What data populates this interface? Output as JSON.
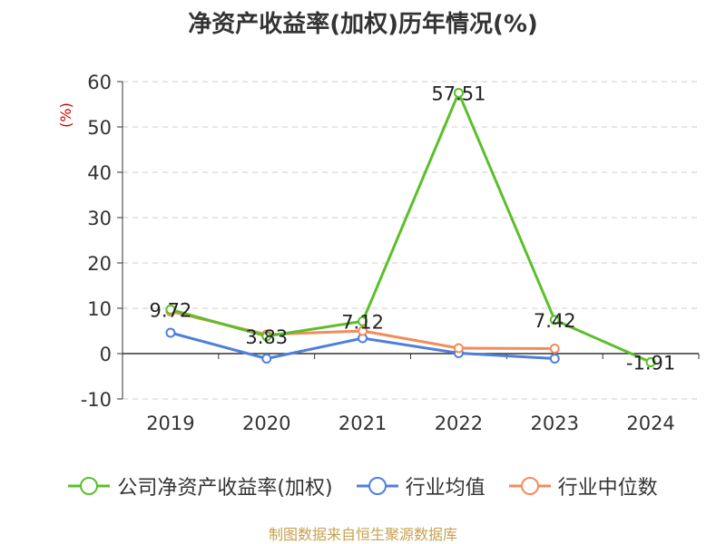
{
  "chart_data": {
    "type": "line",
    "title": "净资产收益率(加权)历年情况(%)",
    "ylabel": "(%)",
    "xlabel": "",
    "categories": [
      "2019",
      "2020",
      "2021",
      "2022",
      "2023",
      "2024"
    ],
    "ylim": [
      -10,
      60
    ],
    "yticks": [
      -10,
      0,
      10,
      20,
      30,
      40,
      50,
      60
    ],
    "grid": true,
    "legend_position": "bottom",
    "series": [
      {
        "name": "公司净资产收益率(加权)",
        "color": "#5cbf2a",
        "values": [
          9.72,
          3.83,
          7.12,
          57.51,
          7.42,
          -1.91
        ],
        "labels": [
          "9.72",
          "3.83",
          "7.12",
          "57.51",
          "7.42",
          "-1.91"
        ]
      },
      {
        "name": "行业均值",
        "color": "#4f7fdc",
        "values": [
          4.6,
          -1.1,
          3.4,
          0.1,
          -1.1,
          null
        ]
      },
      {
        "name": "行业中位数",
        "color": "#f28c5a",
        "values": [
          9.3,
          4.2,
          5.0,
          1.2,
          1.1,
          null
        ]
      }
    ]
  },
  "footer": {
    "source": "制图数据来自恒生聚源数据库"
  }
}
